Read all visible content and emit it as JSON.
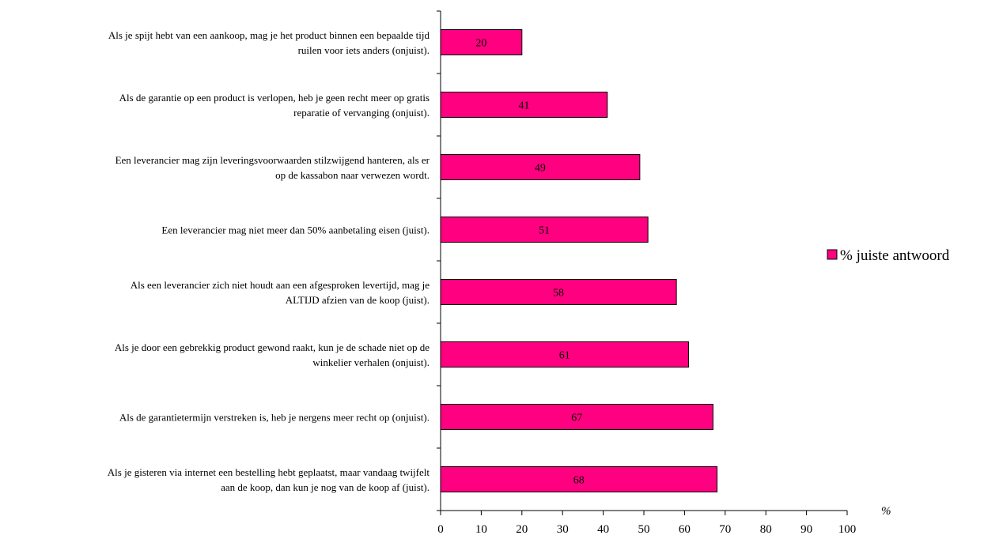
{
  "chart_data": {
    "type": "bar",
    "orientation": "horizontal",
    "categories": [
      [
        "Als je spijt hebt van een aankoop, mag je het product binnen een bepaalde tijd",
        "ruilen voor iets anders (onjuist)."
      ],
      [
        "Als de garantie op een product is verlopen, heb je geen recht meer op gratis",
        "reparatie of vervanging (onjuist)."
      ],
      [
        "Een leverancier mag zijn leveringsvoorwaarden stilzwijgend hanteren, als er",
        "op de kassabon naar verwezen wordt."
      ],
      [
        "Een leverancier mag niet meer dan 50% aanbetaling eisen (juist)."
      ],
      [
        "Als een leverancier zich niet houdt aan een afgesproken levertijd, mag je",
        "ALTIJD afzien van de koop (juist)."
      ],
      [
        "Als je door een gebrekkig product gewond raakt, kun je de schade niet op de",
        "winkelier verhalen (onjuist)."
      ],
      [
        "Als de garantietermijn verstreken is, heb je nergens meer recht op (onjuist)."
      ],
      [
        "Als je gisteren via internet een bestelling hebt geplaatst, maar vandaag twijfelt",
        "aan de koop, dan kun je nog van de koop af (juist)."
      ]
    ],
    "series": [
      {
        "name": "% juiste antwoord",
        "values": [
          20,
          41,
          49,
          51,
          58,
          61,
          67,
          68
        ],
        "color": "#FF0080"
      }
    ],
    "xlim": [
      0,
      100
    ],
    "xticks": [
      0,
      10,
      20,
      30,
      40,
      50,
      60,
      70,
      80,
      90,
      100
    ],
    "xunit": "%",
    "data_labels": true,
    "grid": false,
    "legend_position": "right"
  }
}
